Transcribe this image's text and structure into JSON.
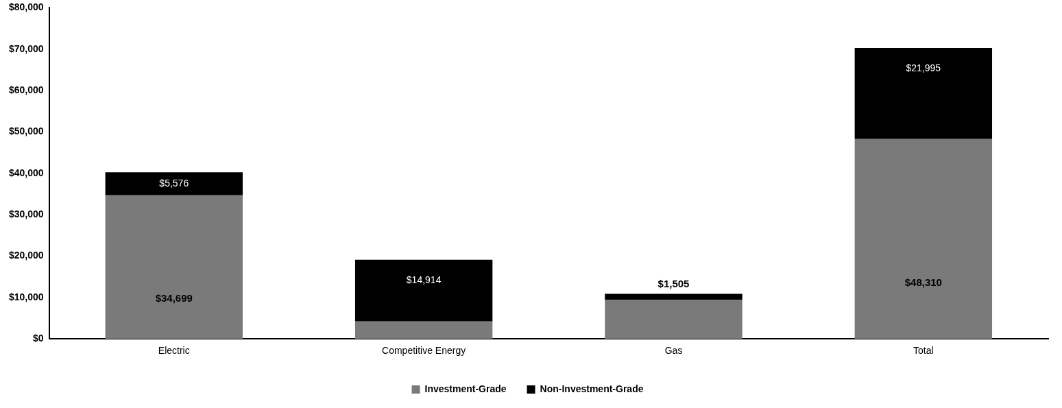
{
  "chart_data": {
    "type": "bar",
    "stacked": true,
    "categories": [
      "Electric",
      "Competitive Energy",
      "Gas",
      "Total"
    ],
    "series": [
      {
        "name": "Investment-Grade",
        "color": "#7a7a7a",
        "values": [
          34699,
          4200,
          9400,
          48310
        ],
        "value_labels": [
          "$34,699",
          null,
          null,
          "$48,310"
        ]
      },
      {
        "name": "Non-Investment-Grade",
        "color": "#000000",
        "values": [
          5576,
          14914,
          1505,
          21995
        ],
        "value_labels": [
          "$5,576",
          "$14,914",
          "$1,505",
          "$21,995"
        ]
      }
    ],
    "ylim": [
      0,
      80000
    ],
    "yticks": [
      {
        "value": 0,
        "label": "$0"
      },
      {
        "value": 10000,
        "label": "$10,000"
      },
      {
        "value": 20000,
        "label": "$20,000"
      },
      {
        "value": 30000,
        "label": "$30,000"
      },
      {
        "value": 40000,
        "label": "$40,000"
      },
      {
        "value": 50000,
        "label": "$50,000"
      },
      {
        "value": 60000,
        "label": "$60,000"
      },
      {
        "value": 70000,
        "label": "$70,000"
      },
      {
        "value": 80000,
        "label": "$80,000"
      }
    ],
    "grid": false,
    "legend": "bottom"
  }
}
